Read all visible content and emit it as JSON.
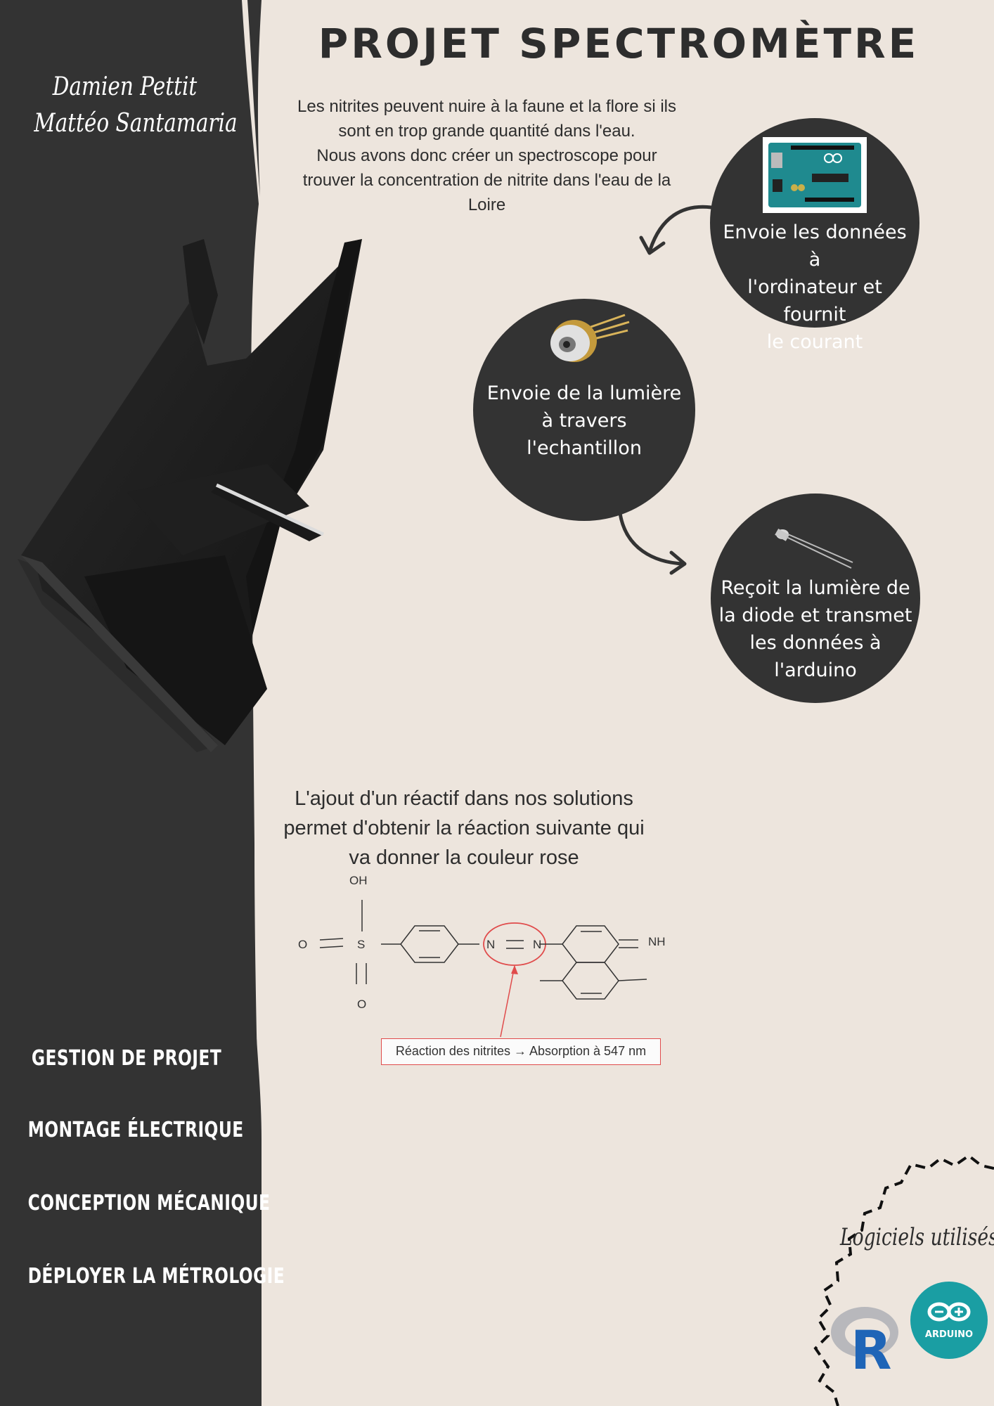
{
  "title": "PROJET SPECTROMÈTRE",
  "authors": [
    "Damien Pettit",
    "Mattéo Santamaria"
  ],
  "intro": {
    "lines": [
      "Les nitrites peuvent nuire à la faune et la flore si ils",
      "sont en trop grande quantité dans l'eau.",
      "Nous avons donc créer un spectroscope pour",
      "trouver la concentration de nitrite dans l'eau de la",
      "Loire"
    ]
  },
  "circles": {
    "arduino": {
      "lines": [
        "Envoie les données à",
        "l'ordinateur et fournit",
        "le courant"
      ]
    },
    "laser": {
      "lines": [
        "Envoie de la lumière",
        "à travers",
        "l'echantillon"
      ]
    },
    "sensor": {
      "lines": [
        "Reçoit la lumière de",
        "la diode et transmet",
        "les données à",
        "l'arduino"
      ]
    }
  },
  "reaction": {
    "lines": [
      "L'ajout d'un réactif dans nos solutions",
      "permet d'obtenir la réaction suivante qui",
      "va donner la couleur rose"
    ],
    "atoms": {
      "oh": "OH",
      "o_left": "O",
      "s": "S",
      "o_bottom": "O",
      "n1": "N",
      "n2": "N",
      "nh": "NH"
    },
    "label": "Réaction des nitrites → Absorption à 547 nm"
  },
  "nav": [
    "GESTION DE PROJET",
    "MONTAGE ÉLECTRIQUE",
    "CONCEPTION MÉCANIQUE",
    "DÉPLOYER LA MÉTROLOGIE"
  ],
  "software": {
    "heading": "Logiciels utilisés",
    "logos": {
      "r": "R",
      "arduino": "ARDUINO"
    }
  },
  "colors": {
    "background": "#ede5dd",
    "dark": "#333333",
    "accent_red": "#e04b4b",
    "arduino_teal": "#1a9ea3",
    "r_blue": "#1f65b7"
  }
}
